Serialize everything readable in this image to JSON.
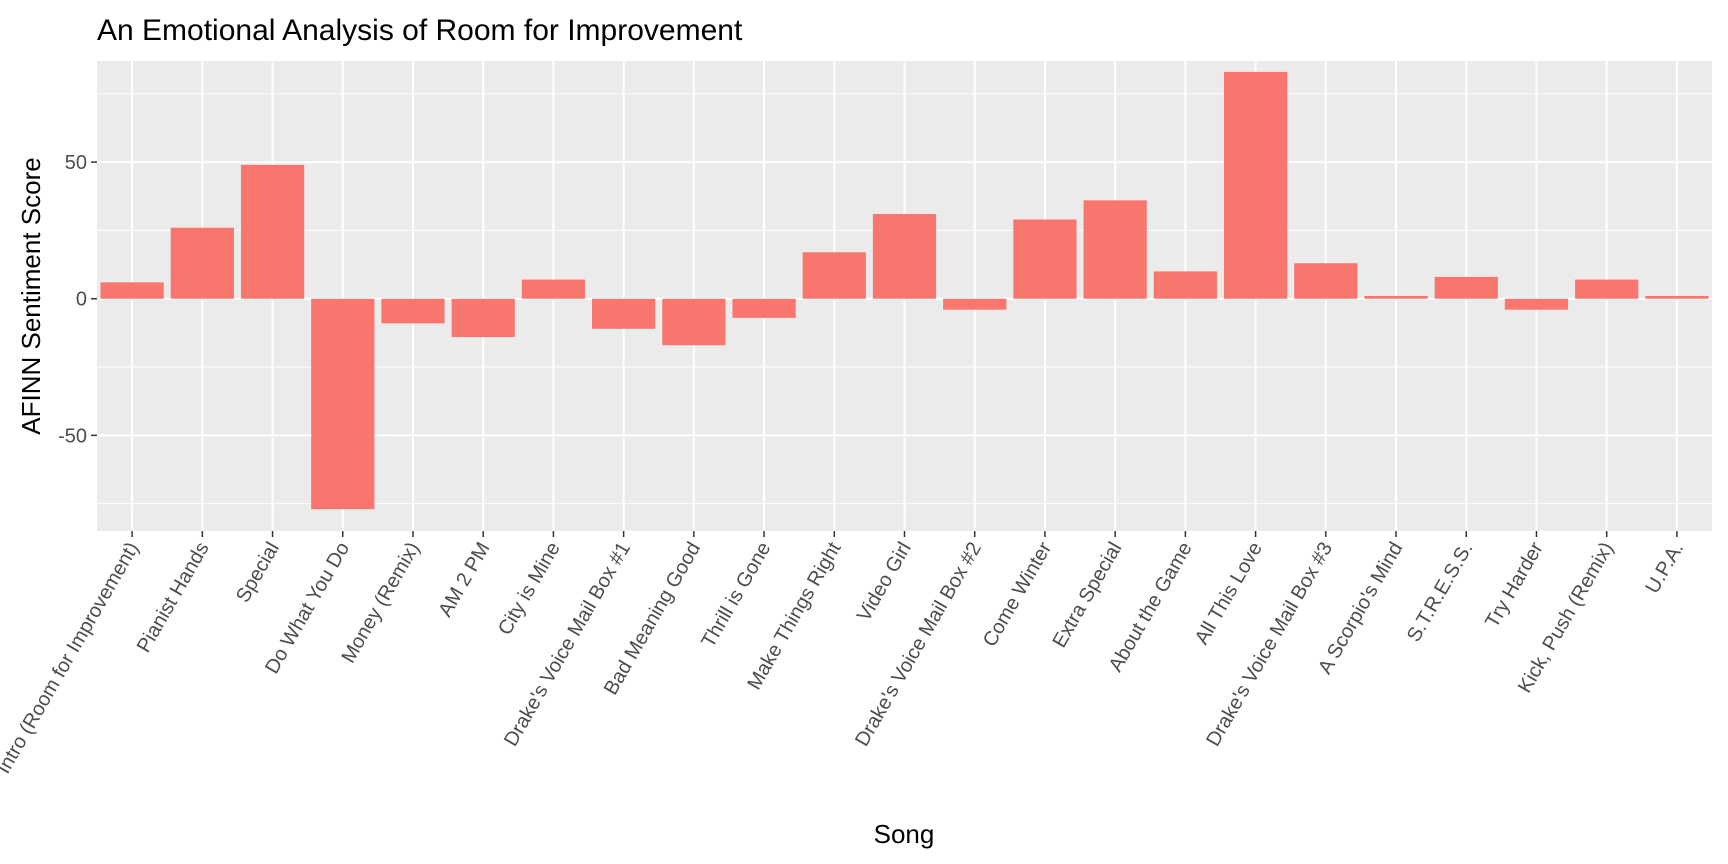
{
  "chart_data": {
    "type": "bar",
    "title": "An Emotional Analysis of Room for Improvement",
    "xlabel": "Song",
    "ylabel": "AFINN Sentiment Score",
    "categories": [
      "Intro (Room for Improvement)",
      "Pianist Hands",
      "Special",
      "Do What You Do",
      "Money (Remix)",
      "AM 2 PM",
      "City is Mine",
      "Drake's Voice Mail Box #1",
      "Bad Meaning Good",
      "Thrill is Gone",
      "Make Things Right",
      "Video Girl",
      "Drake's Voice Mail Box #2",
      "Come Winter",
      "Extra Special",
      "About the Game",
      "All This Love",
      "Drake's Voice Mail Box #3",
      "A Scorpio's Mind",
      "S.T.R.E.S.S.",
      "Try Harder",
      "Kick, Push (Remix)",
      "U.P.A."
    ],
    "values": [
      6,
      26,
      49,
      -77,
      -9,
      -14,
      7,
      -11,
      -17,
      -7,
      17,
      31,
      -4,
      29,
      36,
      10,
      83,
      13,
      1,
      8,
      -4,
      7,
      1
    ],
    "ylim": [
      -85,
      87
    ],
    "yticks": [
      -50,
      0,
      50
    ],
    "grid": true,
    "legend": "none",
    "colors": {
      "bar": "#F8766D",
      "panel": "#EBEBEB",
      "grid": "#FFFFFF",
      "tick": "#333333"
    }
  }
}
